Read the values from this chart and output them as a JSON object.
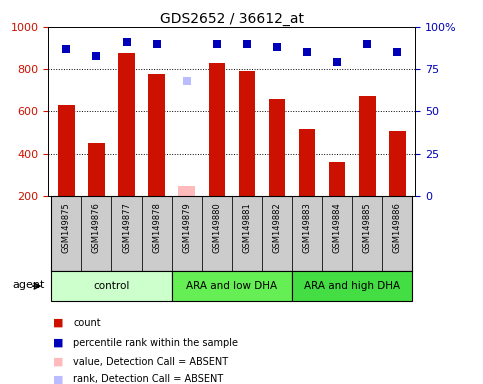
{
  "title": "GDS2652 / 36612_at",
  "samples": [
    "GSM149875",
    "GSM149876",
    "GSM149877",
    "GSM149878",
    "GSM149879",
    "GSM149880",
    "GSM149881",
    "GSM149882",
    "GSM149883",
    "GSM149884",
    "GSM149885",
    "GSM149886"
  ],
  "bar_values": [
    630,
    450,
    875,
    775,
    null,
    830,
    790,
    660,
    515,
    360,
    675,
    505
  ],
  "absent_bar_value": 245,
  "absent_bar_index": 4,
  "percentile_values": [
    87,
    83,
    91,
    90,
    null,
    90,
    90,
    88,
    85,
    79,
    90,
    85
  ],
  "absent_rank_value": 68,
  "absent_rank_index": 4,
  "groups": [
    {
      "label": "control",
      "start": 0,
      "end": 3
    },
    {
      "label": "ARA and low DHA",
      "start": 4,
      "end": 7
    },
    {
      "label": "ARA and high DHA",
      "start": 8,
      "end": 11
    }
  ],
  "group_colors": [
    "#ccffcc",
    "#66ee55",
    "#44dd44"
  ],
  "bar_color": "#cc1100",
  "absent_bar_color": "#ffbbbb",
  "blue_marker_color": "#0000bb",
  "absent_rank_color": "#bbbbff",
  "ylim_left": [
    200,
    1000
  ],
  "ylim_right": [
    0,
    100
  ],
  "yticks_left": [
    200,
    400,
    600,
    800,
    1000
  ],
  "yticks_right": [
    0,
    25,
    50,
    75,
    100
  ],
  "grid_values": [
    400,
    600,
    800
  ],
  "tick_label_color_left": "#cc1100",
  "tick_label_color_right": "#0000bb",
  "bar_width": 0.55,
  "marker_size": 6,
  "title_fontsize": 10,
  "legend_items": [
    {
      "color": "#cc1100",
      "label": "count"
    },
    {
      "color": "#0000bb",
      "label": "percentile rank within the sample"
    },
    {
      "color": "#ffbbbb",
      "label": "value, Detection Call = ABSENT"
    },
    {
      "color": "#bbbbff",
      "label": "rank, Detection Call = ABSENT"
    }
  ],
  "agent_label": "agent",
  "sample_row_color": "#cccccc",
  "plot_bg_color": "#ffffff"
}
